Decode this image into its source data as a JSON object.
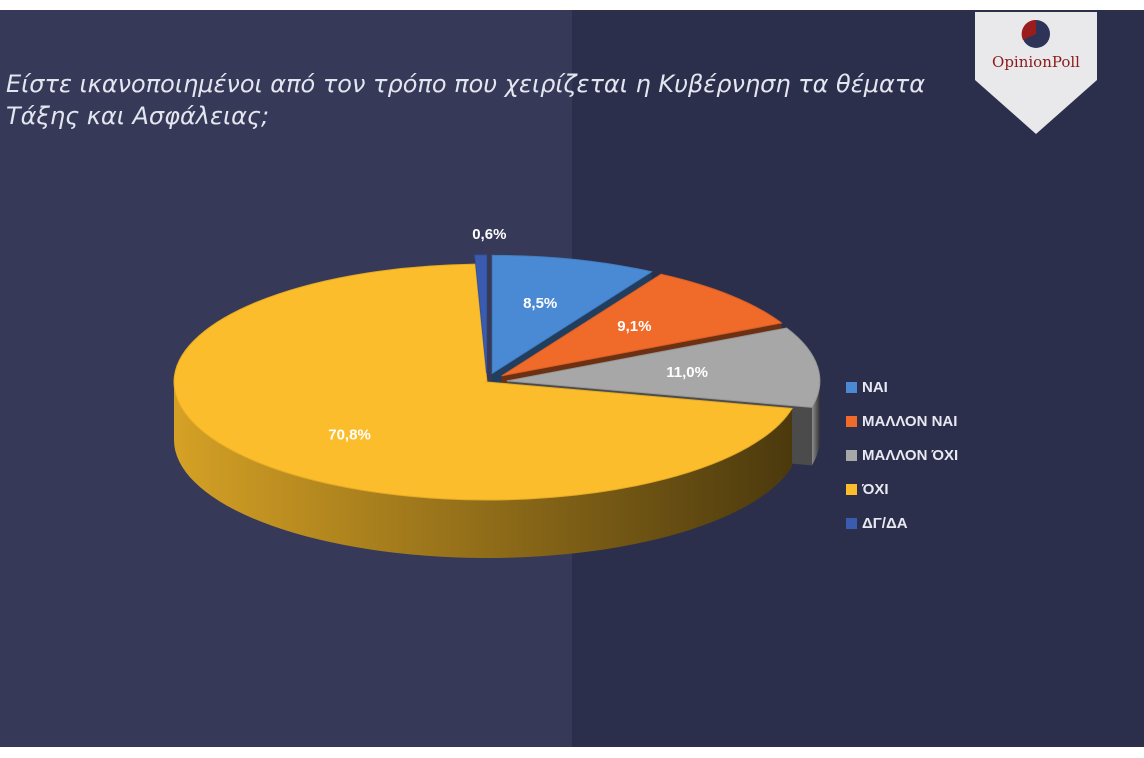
{
  "brand": {
    "name": "OpinionPoll",
    "accent": "#9b1c1c",
    "badge_color": "#e9e9eb"
  },
  "chart_data": {
    "type": "pie",
    "title": "Είστε ικανοποιημένοι από τον τρόπο που χειρίζεται η Κυβέρνηση τα θέματα Τάξης και Ασφάλειας;",
    "categories": [
      "ΝΑΙ",
      "ΜΑΛΛΟΝ ΝΑΙ",
      "ΜΑΛΛΟΝ ΌΧΙ",
      "ΌΧΙ",
      "ΔΓ/ΔΑ"
    ],
    "values": [
      8.5,
      9.1,
      11.0,
      70.8,
      0.6
    ],
    "value_labels": [
      "8,5%",
      "9,1%",
      "11,0%",
      "70,8%",
      "0,6%"
    ],
    "colors": [
      "#4a8ad4",
      "#f06a2a",
      "#a7a7a7",
      "#fbbd2b",
      "#3a5cb0"
    ],
    "legend_position": "right",
    "style": "3d-exploded"
  }
}
